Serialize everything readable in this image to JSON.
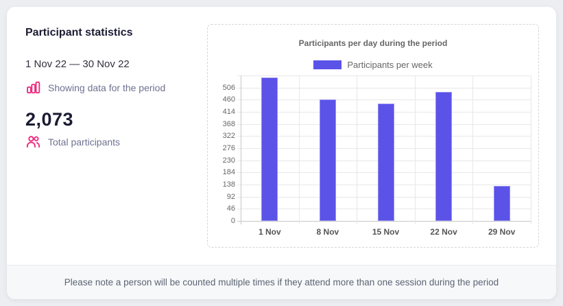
{
  "panel": {
    "title": "Participant statistics",
    "date_range": "1 Nov 22 — 30 Nov 22",
    "period_label": "Showing data for the period",
    "period_icon": "bar-chart-icon",
    "total_value": "2,073",
    "total_label": "Total participants",
    "total_icon": "people-icon"
  },
  "colors": {
    "accent_pink": "#ed2e7e",
    "bar_purple": "#5b52e8"
  },
  "chart_data": {
    "type": "bar",
    "title": "Participants per day during the period",
    "legend": [
      {
        "label": "Participants per week",
        "color": "#5b52e8"
      }
    ],
    "legend_position": "top",
    "categories": [
      "1 Nov",
      "8 Nov",
      "15 Nov",
      "22 Nov",
      "29 Nov"
    ],
    "values": [
      544,
      460,
      446,
      490,
      133
    ],
    "total": 2073,
    "xlabel": "",
    "ylabel": "",
    "y_ticks": [
      0,
      46,
      92,
      138,
      184,
      230,
      276,
      322,
      368,
      414,
      460,
      506
    ],
    "ylim": [
      0,
      552
    ],
    "grid": true
  },
  "footer": {
    "note": "Please note a person will be counted multiple times if they attend more than one session during the period"
  }
}
